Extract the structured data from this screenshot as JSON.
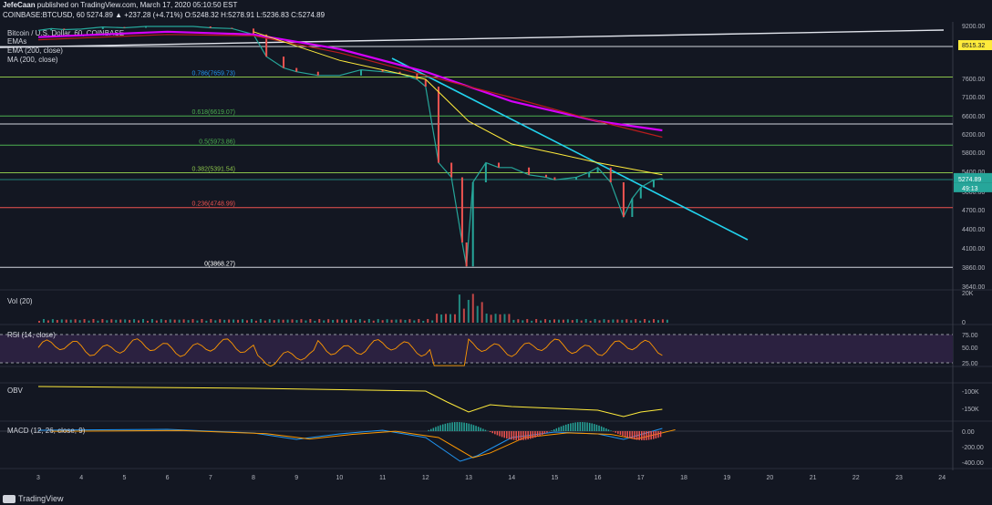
{
  "header": {
    "line1": {
      "author": "JefeCaan",
      "text": " published on TradingView.com, March 17, 2020 05:10:50 EST"
    },
    "line2": "COINBASE:BTCUSD, 60  5274.89  ▲ +237.28 (+4.71%)  O:5248.32  H:5278.91  L:5236.83  C:5274.89"
  },
  "legend": {
    "symbol": "Bitcoin / U.S. Dollar, 60, COINBASE",
    "ema_short": "EMAs",
    "ema": "EMA (200, close)",
    "ma": "MA (200, close)"
  },
  "price_axis": {
    "ticks": [
      "9200.00",
      "8515.32",
      "7600.00",
      "7100.00",
      "6600.00",
      "6200.00",
      "5800.00",
      "5400.00",
      "5000.00",
      "4700.00",
      "4400.00",
      "4100.00",
      "3860.00",
      "3640.00"
    ],
    "last_price": "5274.89",
    "countdown": "49:13"
  },
  "fib_levels": [
    {
      "label": "0.786(7659.73)",
      "price": 7659.73,
      "color": "#2196f3"
    },
    {
      "label": "0.618(6619.07)",
      "price": 6619.07,
      "color": "#4caf50"
    },
    {
      "label": "0.5(5973.86)",
      "price": 5973.86,
      "color": "#4caf50"
    },
    {
      "label": "0.382(5391.54)",
      "price": 5391.54,
      "color": "#8bc34a"
    },
    {
      "label": "0.236(4748.99)",
      "price": 4748.99,
      "color": "#ef5350"
    },
    {
      "label": "0(3868.27)",
      "price": 3868.27,
      "color": "#ffffff"
    }
  ],
  "panes": {
    "vol": {
      "label": "Vol (20)",
      "ticks": [
        "20K",
        "0"
      ]
    },
    "rsi": {
      "label": "RSI (14, close)",
      "ticks": [
        "75.00",
        "50.00",
        "25.00"
      ]
    },
    "obv": {
      "label": "OBV",
      "ticks": [
        "-100K",
        "-150K"
      ]
    },
    "macd": {
      "label": "MACD (12, 26, close, 9)",
      "ticks": [
        "0.00",
        "-200.00",
        "-400.00"
      ]
    }
  },
  "time_axis": [
    "3",
    "4",
    "5",
    "6",
    "7",
    "8",
    "9",
    "10",
    "11",
    "12",
    "13",
    "14",
    "15",
    "16",
    "17",
    "18",
    "19",
    "20",
    "21",
    "22",
    "23",
    "24"
  ],
  "footer": {
    "brand": "TradingView"
  },
  "chart_data": {
    "type": "line",
    "title": "Bitcoin / U.S. Dollar, 60, COINBASE",
    "x": [
      "3",
      "4",
      "5",
      "6",
      "7",
      "8",
      "9",
      "10",
      "11",
      "12",
      "13",
      "14",
      "15",
      "16",
      "17"
    ],
    "series": [
      {
        "values": [
          9050,
          9100,
          9150,
          9200,
          9150,
          8900,
          7800,
          7700,
          7800,
          7600,
          4900,
          5500,
          5300,
          5300,
          5274.89
        ]
      }
    ],
    "ylim": [
      3640,
      9200
    ],
    "fib_retracement": [
      7659.73,
      6619.07,
      5973.86,
      5391.54,
      4748.99,
      3868.27
    ]
  }
}
